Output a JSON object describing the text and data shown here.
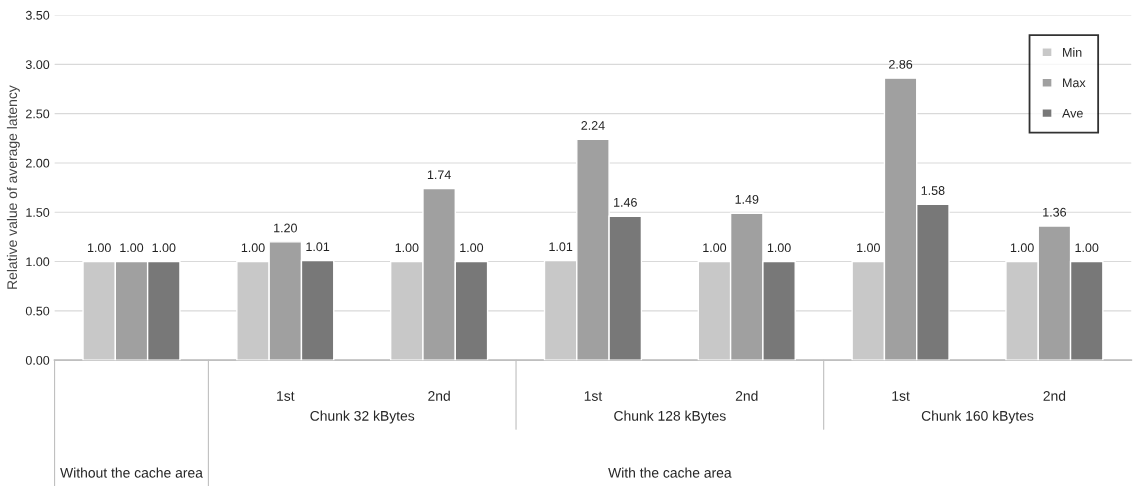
{
  "chart_data": {
    "type": "bar",
    "ylabel": "Relative value of average latency",
    "categories": [
      null,
      "1st",
      "2nd",
      "1st",
      "2nd",
      "1st",
      "2nd"
    ],
    "series": [
      {
        "name": "Min",
        "color": "#c8c8c8",
        "values": [
          1.0,
          1.0,
          1.0,
          1.01,
          1.0,
          1.0,
          1.0
        ],
        "value_labels": [
          "1.00",
          "1.00",
          "1.00",
          "1.01",
          "1.00",
          "1.00",
          "1.00"
        ]
      },
      {
        "name": "Max",
        "color": "#a0a0a0",
        "values": [
          1.0,
          1.2,
          1.74,
          2.24,
          1.49,
          2.86,
          1.36
        ],
        "value_labels": [
          "1.00",
          "1.20",
          "1.74",
          "2.24",
          "1.49",
          "2.86",
          "1.36"
        ]
      },
      {
        "name": "Ave",
        "color": "#787878",
        "values": [
          1.0,
          1.01,
          1.0,
          1.46,
          1.0,
          1.58,
          1.0
        ],
        "value_labels": [
          "1.00",
          "1.01",
          "1.00",
          "1.46",
          "1.00",
          "1.58",
          "1.00"
        ]
      }
    ],
    "ylim": [
      0,
      3.5
    ],
    "yticks": [
      {
        "value": 0,
        "label": "0.00"
      },
      {
        "value": 0.5,
        "label": "0.50"
      },
      {
        "value": 1,
        "label": "1.00"
      },
      {
        "value": 1.5,
        "label": "1.50"
      },
      {
        "value": 2,
        "label": "2.00"
      },
      {
        "value": 2.5,
        "label": "2.50"
      },
      {
        "value": 3,
        "label": "3.00"
      },
      {
        "value": 3.5,
        "label": "3.50"
      }
    ],
    "grid": "y",
    "legend": "top right",
    "annotations": [
      "Without the cache area",
      "Chunk 32 kBytes",
      "Chunk 128 kBytes",
      "Chunk 160 kBytes",
      "With the cache area"
    ]
  }
}
